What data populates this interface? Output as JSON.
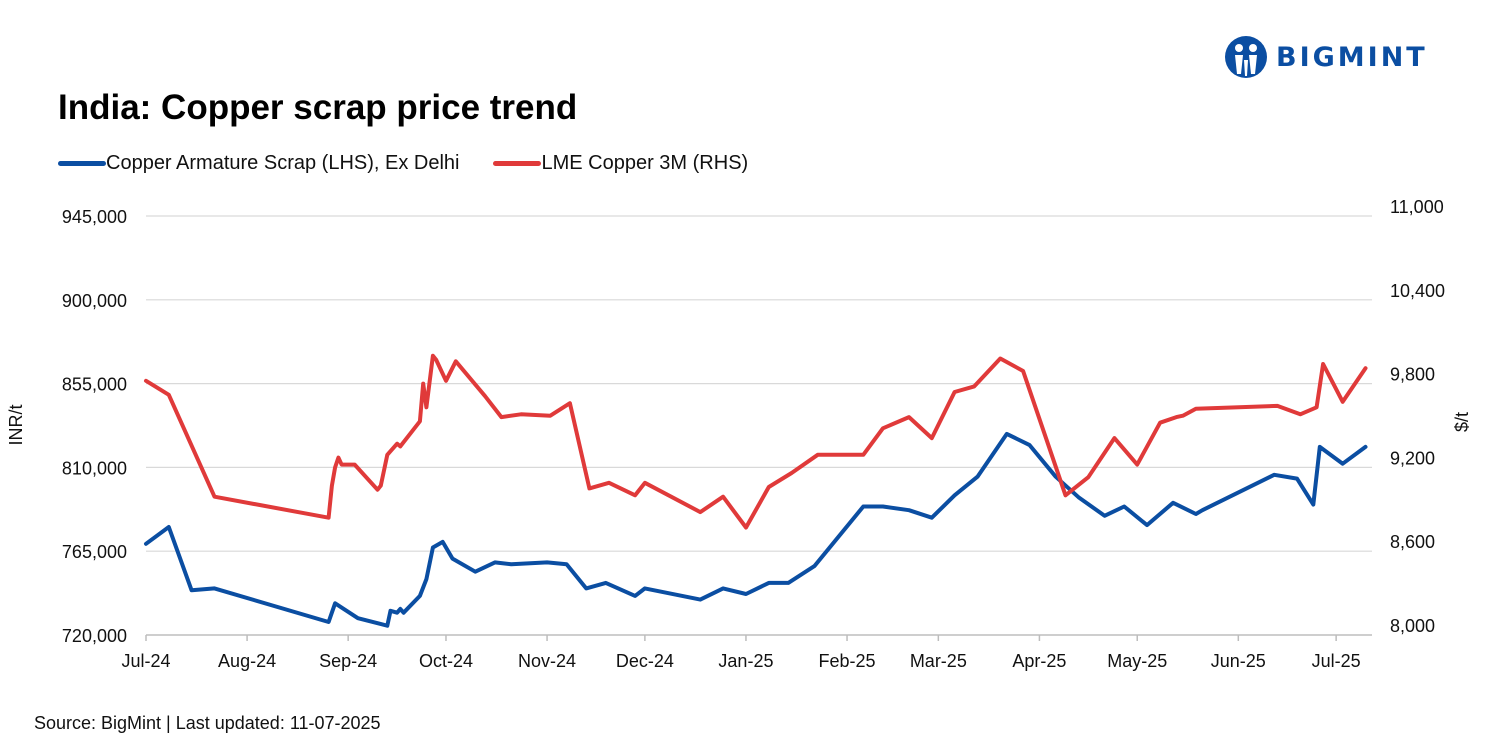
{
  "brand": {
    "name": "BIGMINT",
    "color": "#0b4ea2"
  },
  "title": "India: Copper scrap price trend",
  "legend": [
    {
      "label": "Copper Armature Scrap (LHS), Ex Delhi",
      "color": "#0b4ea2"
    },
    {
      "label": "LME Copper 3M (RHS)",
      "color": "#e03a3a"
    }
  ],
  "source": "Source: BigMint | Last updated: 11-07-2025",
  "chart_data": {
    "type": "line",
    "xlabel": "",
    "ylabel_left": "INR/t",
    "ylabel_right": "$/t",
    "x_ticks": [
      "Jul-24",
      "Aug-24",
      "Sep-24",
      "Oct-24",
      "Nov-24",
      "Dec-24",
      "Jan-25",
      "Feb-25",
      "Mar-25",
      "Apr-25",
      "May-25",
      "Jun-25",
      "Jul-25"
    ],
    "x_range": [
      "2024-07-01",
      "2025-07-12"
    ],
    "y_left": {
      "min": 720000,
      "max": 945000,
      "ticks": [
        "720,000",
        "765,000",
        "810,000",
        "855,000",
        "900,000",
        "945,000"
      ]
    },
    "y_right": {
      "min": 8000,
      "max": 11000,
      "ticks": [
        "8,000",
        "8,600",
        "9,200",
        "9,800",
        "10,400",
        "11,000"
      ]
    },
    "grid": true,
    "legend_position": "top-left",
    "series": [
      {
        "name": "Copper Armature Scrap (LHS), Ex Delhi",
        "axis": "left",
        "color": "#0b4ea2",
        "points": [
          [
            "2024-07-01",
            769000
          ],
          [
            "2024-07-08",
            778000
          ],
          [
            "2024-07-15",
            744000
          ],
          [
            "2024-07-22",
            745000
          ],
          [
            "2024-08-26",
            727000
          ],
          [
            "2024-08-28",
            737000
          ],
          [
            "2024-09-04",
            729000
          ],
          [
            "2024-09-13",
            725000
          ],
          [
            "2024-09-14",
            733000
          ],
          [
            "2024-09-16",
            732000
          ],
          [
            "2024-09-17",
            734000
          ],
          [
            "2024-09-18",
            732000
          ],
          [
            "2024-09-23",
            741000
          ],
          [
            "2024-09-25",
            750000
          ],
          [
            "2024-09-27",
            767000
          ],
          [
            "2024-09-30",
            770000
          ],
          [
            "2024-10-03",
            761000
          ],
          [
            "2024-10-10",
            754000
          ],
          [
            "2024-10-16",
            759000
          ],
          [
            "2024-10-21",
            758000
          ],
          [
            "2024-11-01",
            759000
          ],
          [
            "2024-11-07",
            758000
          ],
          [
            "2024-11-13",
            745000
          ],
          [
            "2024-11-19",
            748000
          ],
          [
            "2024-11-28",
            741000
          ],
          [
            "2024-12-01",
            745000
          ],
          [
            "2024-12-18",
            739000
          ],
          [
            "2024-12-25",
            745000
          ],
          [
            "2025-01-01",
            742000
          ],
          [
            "2025-01-08",
            748000
          ],
          [
            "2025-01-14",
            748000
          ],
          [
            "2025-01-22",
            757000
          ],
          [
            "2025-02-06",
            789000
          ],
          [
            "2025-02-12",
            789000
          ],
          [
            "2025-02-20",
            787000
          ],
          [
            "2025-02-27",
            783000
          ],
          [
            "2025-03-06",
            795000
          ],
          [
            "2025-03-13",
            805000
          ],
          [
            "2025-03-22",
            828000
          ],
          [
            "2025-03-29",
            822000
          ],
          [
            "2025-04-06",
            805000
          ],
          [
            "2025-04-13",
            794000
          ],
          [
            "2025-04-21",
            784000
          ],
          [
            "2025-04-27",
            789000
          ],
          [
            "2025-05-04",
            779000
          ],
          [
            "2025-05-12",
            791000
          ],
          [
            "2025-05-19",
            785000
          ],
          [
            "2025-05-21",
            787000
          ],
          [
            "2025-06-12",
            806000
          ],
          [
            "2025-06-19",
            804000
          ],
          [
            "2025-06-24",
            790000
          ],
          [
            "2025-06-26",
            821000
          ],
          [
            "2025-07-03",
            812000
          ],
          [
            "2025-07-10",
            821000
          ]
        ]
      },
      {
        "name": "LME Copper 3M (RHS)",
        "axis": "right",
        "color": "#e03a3a",
        "points": [
          [
            "2024-07-01",
            9820
          ],
          [
            "2024-07-08",
            9720
          ],
          [
            "2024-07-22",
            8990
          ],
          [
            "2024-08-26",
            8840
          ],
          [
            "2024-08-27",
            9070
          ],
          [
            "2024-08-28",
            9200
          ],
          [
            "2024-08-29",
            9270
          ],
          [
            "2024-08-30",
            9220
          ],
          [
            "2024-09-03",
            9220
          ],
          [
            "2024-09-10",
            9040
          ],
          [
            "2024-09-11",
            9070
          ],
          [
            "2024-09-13",
            9290
          ],
          [
            "2024-09-16",
            9370
          ],
          [
            "2024-09-17",
            9350
          ],
          [
            "2024-09-23",
            9530
          ],
          [
            "2024-09-24",
            9800
          ],
          [
            "2024-09-25",
            9630
          ],
          [
            "2024-09-27",
            10000
          ],
          [
            "2024-09-28",
            9970
          ],
          [
            "2024-10-01",
            9820
          ],
          [
            "2024-10-04",
            9960
          ],
          [
            "2024-10-13",
            9710
          ],
          [
            "2024-10-18",
            9560
          ],
          [
            "2024-10-24",
            9580
          ],
          [
            "2024-11-02",
            9570
          ],
          [
            "2024-11-08",
            9660
          ],
          [
            "2024-11-14",
            9050
          ],
          [
            "2024-11-20",
            9090
          ],
          [
            "2024-11-28",
            9000
          ],
          [
            "2024-12-01",
            9090
          ],
          [
            "2024-12-18",
            8880
          ],
          [
            "2024-12-25",
            8990
          ],
          [
            "2025-01-01",
            8770
          ],
          [
            "2025-01-08",
            9060
          ],
          [
            "2025-01-15",
            9160
          ],
          [
            "2025-01-23",
            9290
          ],
          [
            "2025-02-06",
            9290
          ],
          [
            "2025-02-12",
            9480
          ],
          [
            "2025-02-20",
            9560
          ],
          [
            "2025-02-27",
            9410
          ],
          [
            "2025-03-06",
            9740
          ],
          [
            "2025-03-12",
            9780
          ],
          [
            "2025-03-20",
            9980
          ],
          [
            "2025-03-27",
            9890
          ],
          [
            "2025-04-09",
            9000
          ],
          [
            "2025-04-16",
            9130
          ],
          [
            "2025-04-24",
            9410
          ],
          [
            "2025-05-01",
            9220
          ],
          [
            "2025-05-08",
            9520
          ],
          [
            "2025-05-13",
            9560
          ],
          [
            "2025-05-15",
            9570
          ],
          [
            "2025-05-19",
            9620
          ],
          [
            "2025-06-13",
            9640
          ],
          [
            "2025-06-20",
            9580
          ],
          [
            "2025-06-25",
            9630
          ],
          [
            "2025-06-27",
            9940
          ],
          [
            "2025-07-03",
            9670
          ],
          [
            "2025-07-10",
            9910
          ]
        ]
      }
    ]
  }
}
